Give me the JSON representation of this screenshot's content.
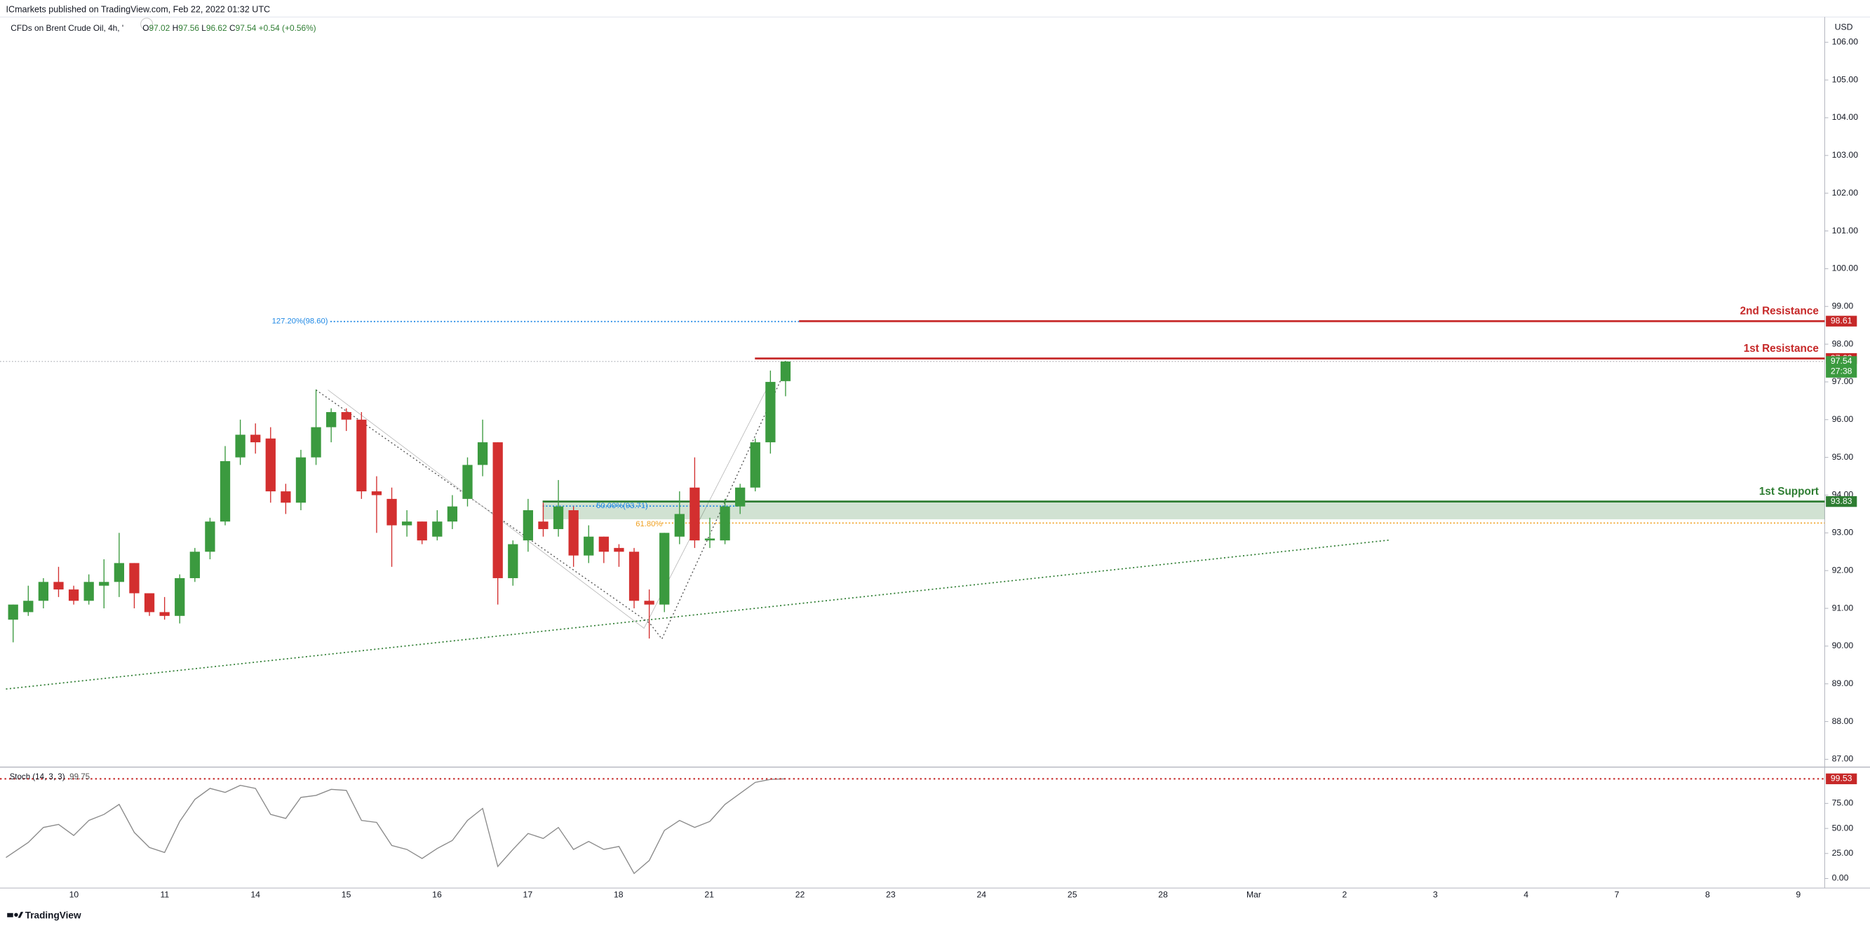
{
  "header": {
    "publisher": "ICmarkets published on TradingView.com, Feb 22, 2022 01:32 UTC",
    "symbol": "CFDs on Brent Crude Oil, 4h, '",
    "ohlc": [
      {
        "label": "O",
        "value": 97.02
      },
      {
        "label": "H",
        "value": 97.56
      },
      {
        "label": "L",
        "value": 96.62
      },
      {
        "label": "C",
        "value": 97.54
      }
    ],
    "change": "+0.54 (+0.56%)"
  },
  "chart_data": {
    "type": "candlestick",
    "currency": "USD",
    "x": [
      "10",
      "11",
      "14",
      "15",
      "16",
      "17",
      "18",
      "21",
      "22",
      "23",
      "24",
      "25",
      "28",
      "Mar",
      "2",
      "3",
      "4",
      "7",
      "8",
      "9"
    ],
    "up_color": "#3b9a3f",
    "down_color": "#d32f2f",
    "candles": [
      {
        "open": 90.7,
        "high": 91.1,
        "low": 90.1,
        "close": 91.1
      },
      {
        "open": 90.9,
        "high": 91.6,
        "low": 90.8,
        "close": 91.2
      },
      {
        "open": 91.2,
        "high": 91.8,
        "low": 91.0,
        "close": 91.7
      },
      {
        "open": 91.7,
        "high": 92.1,
        "low": 91.3,
        "close": 91.5
      },
      {
        "open": 91.5,
        "high": 91.6,
        "low": 91.1,
        "close": 91.2
      },
      {
        "open": 91.2,
        "high": 91.9,
        "low": 91.1,
        "close": 91.7
      },
      {
        "open": 91.6,
        "high": 92.3,
        "low": 91.0,
        "close": 91.7
      },
      {
        "open": 91.7,
        "high": 93.0,
        "low": 91.3,
        "close": 92.2
      },
      {
        "open": 92.2,
        "high": 92.2,
        "low": 91.0,
        "close": 91.4
      },
      {
        "open": 91.4,
        "high": 91.4,
        "low": 90.8,
        "close": 90.9
      },
      {
        "open": 90.9,
        "high": 91.3,
        "low": 90.7,
        "close": 90.8
      },
      {
        "open": 90.8,
        "high": 91.9,
        "low": 90.6,
        "close": 91.8
      },
      {
        "open": 91.8,
        "high": 92.6,
        "low": 91.7,
        "close": 92.5
      },
      {
        "open": 92.5,
        "high": 93.4,
        "low": 92.3,
        "close": 93.3
      },
      {
        "open": 93.3,
        "high": 95.3,
        "low": 93.2,
        "close": 94.9
      },
      {
        "open": 95.0,
        "high": 96.0,
        "low": 94.8,
        "close": 95.6
      },
      {
        "open": 95.6,
        "high": 95.9,
        "low": 95.1,
        "close": 95.4
      },
      {
        "open": 95.5,
        "high": 95.8,
        "low": 93.8,
        "close": 94.1
      },
      {
        "open": 94.1,
        "high": 94.3,
        "low": 93.5,
        "close": 93.8
      },
      {
        "open": 93.8,
        "high": 95.2,
        "low": 93.6,
        "close": 95.0
      },
      {
        "open": 95.0,
        "high": 96.8,
        "low": 94.8,
        "close": 95.8
      },
      {
        "open": 95.8,
        "high": 96.3,
        "low": 95.4,
        "close": 96.2
      },
      {
        "open": 96.2,
        "high": 96.3,
        "low": 95.7,
        "close": 96.0
      },
      {
        "open": 96.0,
        "high": 96.2,
        "low": 93.9,
        "close": 94.1
      },
      {
        "open": 94.1,
        "high": 94.5,
        "low": 93.0,
        "close": 94.0
      },
      {
        "open": 93.9,
        "high": 94.2,
        "low": 92.1,
        "close": 93.2
      },
      {
        "open": 93.2,
        "high": 93.6,
        "low": 92.9,
        "close": 93.3
      },
      {
        "open": 93.3,
        "high": 93.3,
        "low": 92.7,
        "close": 92.8
      },
      {
        "open": 92.9,
        "high": 93.6,
        "low": 92.8,
        "close": 93.3
      },
      {
        "open": 93.3,
        "high": 94.0,
        "low": 93.1,
        "close": 93.7
      },
      {
        "open": 93.9,
        "high": 95.0,
        "low": 93.7,
        "close": 94.8
      },
      {
        "open": 94.8,
        "high": 96.0,
        "low": 94.5,
        "close": 95.4
      },
      {
        "open": 95.4,
        "high": 95.4,
        "low": 91.1,
        "close": 91.8
      },
      {
        "open": 91.8,
        "high": 92.8,
        "low": 91.6,
        "close": 92.7
      },
      {
        "open": 92.8,
        "high": 93.9,
        "low": 92.5,
        "close": 93.6
      },
      {
        "open": 93.3,
        "high": 93.8,
        "low": 92.9,
        "close": 93.1
      },
      {
        "open": 93.1,
        "high": 94.4,
        "low": 92.9,
        "close": 93.7
      },
      {
        "open": 93.6,
        "high": 93.7,
        "low": 92.1,
        "close": 92.4
      },
      {
        "open": 92.4,
        "high": 93.2,
        "low": 92.2,
        "close": 92.9
      },
      {
        "open": 92.9,
        "high": 92.9,
        "low": 92.2,
        "close": 92.5
      },
      {
        "open": 92.6,
        "high": 92.7,
        "low": 92.1,
        "close": 92.5
      },
      {
        "open": 92.5,
        "high": 92.6,
        "low": 91.0,
        "close": 91.2
      },
      {
        "open": 91.2,
        "high": 91.5,
        "low": 90.2,
        "close": 91.1
      },
      {
        "open": 91.1,
        "high": 93.0,
        "low": 90.9,
        "close": 93.0
      },
      {
        "open": 92.9,
        "high": 94.1,
        "low": 92.7,
        "close": 93.5
      },
      {
        "open": 94.2,
        "high": 95.0,
        "low": 92.6,
        "close": 92.8
      },
      {
        "open": 92.8,
        "high": 93.4,
        "low": 92.6,
        "close": 92.85
      },
      {
        "open": 92.8,
        "high": 93.9,
        "low": 92.7,
        "close": 93.7
      },
      {
        "open": 93.7,
        "high": 94.3,
        "low": 93.5,
        "close": 94.2
      },
      {
        "open": 94.2,
        "high": 95.5,
        "low": 94.1,
        "close": 95.4
      },
      {
        "open": 95.4,
        "high": 97.3,
        "low": 95.1,
        "close": 97.0
      },
      {
        "open": 97.02,
        "high": 97.56,
        "low": 96.62,
        "close": 97.54
      }
    ],
    "ylim": [
      86.81,
      106.67
    ],
    "yticks": [
      {
        "value": 87,
        "label": "87.00"
      },
      {
        "value": 88,
        "label": "88.00"
      },
      {
        "value": 89,
        "label": "89.00"
      },
      {
        "value": 90,
        "label": "90.00"
      },
      {
        "value": 91,
        "label": "91.00"
      },
      {
        "value": 92,
        "label": "92.00"
      },
      {
        "value": 93,
        "label": "93.00"
      },
      {
        "value": 94,
        "label": "94.00"
      },
      {
        "value": 95,
        "label": "95.00"
      },
      {
        "value": 96,
        "label": "96.00"
      },
      {
        "value": 97,
        "label": "97.00"
      },
      {
        "value": 98,
        "label": "98.00"
      },
      {
        "value": 99,
        "label": "99.00"
      },
      {
        "value": 100,
        "label": "100.00"
      },
      {
        "value": 101,
        "label": "101.00"
      },
      {
        "value": 102,
        "label": "102.00"
      },
      {
        "value": 103,
        "label": "103.00"
      },
      {
        "value": 104,
        "label": "104.00"
      },
      {
        "value": 105,
        "label": "105.00"
      },
      {
        "value": 106,
        "label": "106.00"
      }
    ],
    "levels": [
      {
        "name": "2nd Resistance",
        "value": 98.61,
        "color": "#c62828"
      },
      {
        "name": "1st Resistance",
        "value": 97.62,
        "color": "#c62828"
      },
      {
        "name": "1st Support",
        "value": 93.83,
        "color": "#2e7d32",
        "zone_low": 93.36
      }
    ],
    "fib": [
      {
        "label": "127.20%(98.60)",
        "value": 98.6,
        "color": "#1e88e5"
      },
      {
        "label": "50.00%(93.71)",
        "value": 93.71,
        "color": "#1e88e5"
      },
      {
        "label": "61.80%",
        "value": 93.26,
        "color": "#f0a020"
      }
    ],
    "last_price": {
      "value": 97.54,
      "countdown": "27:38",
      "color": "#3b9a3f"
    },
    "stoch": {
      "label": "Stoch (14, 3, 3)",
      "current": 99.75,
      "color": "#8a8a8a",
      "values": [
        21,
        36,
        51,
        54,
        43,
        58,
        64,
        74,
        46,
        31,
        26,
        57,
        79,
        90,
        86,
        93,
        90,
        64,
        60,
        81,
        83,
        89,
        88,
        58,
        56,
        33,
        29,
        20,
        30,
        38,
        58,
        70,
        12,
        29,
        45,
        40,
        51,
        29,
        37,
        29,
        32,
        5,
        18,
        48,
        58,
        51,
        57,
        74,
        85,
        96,
        99,
        99.5
      ],
      "ylim": [
        -9.5,
        109.5
      ],
      "yticks": [
        {
          "value": 0,
          "label": "0.00"
        },
        {
          "value": 25,
          "label": "25.00"
        },
        {
          "value": 50,
          "label": "50.00"
        },
        {
          "value": 75,
          "label": "75.00"
        }
      ],
      "tag": {
        "value": 99.53,
        "color": "#c62828"
      }
    }
  },
  "footer": "TradingView"
}
